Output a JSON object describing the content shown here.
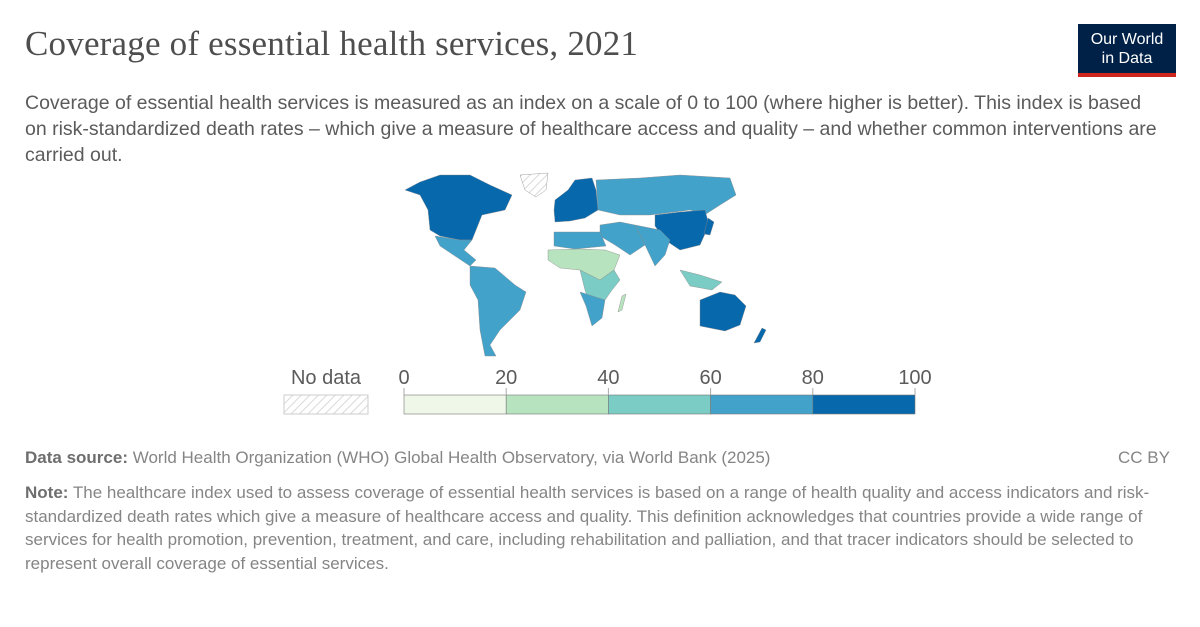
{
  "title": "Coverage of essential health services, 2021",
  "subtitle": "Coverage of essential health services is measured as an index on a scale of 0 to 100 (where higher is better). This index is based on risk-standardized death rates – which give a measure of healthcare access and quality – and whether common interventions are carried out.",
  "logo": {
    "line1": "Our World",
    "line2": "in Data"
  },
  "legend": {
    "no_data": "No data",
    "ticks": [
      "0",
      "20",
      "40",
      "60",
      "80",
      "100"
    ],
    "colors": [
      "#eef7e8",
      "#b8e3bf",
      "#7accc4",
      "#43a2ca",
      "#0868ac"
    ],
    "no_data_color": "#e0e0e0"
  },
  "chart_data": {
    "type": "map",
    "bins": [
      [
        0,
        20
      ],
      [
        20,
        40
      ],
      [
        40,
        60
      ],
      [
        60,
        80
      ],
      [
        80,
        100
      ]
    ],
    "regions": [
      {
        "name": "North America (US, Canada)",
        "bin": 4
      },
      {
        "name": "Mexico & Central America",
        "bin": 3
      },
      {
        "name": "South America",
        "bin": 3
      },
      {
        "name": "Greenland",
        "bin": null
      },
      {
        "name": "Europe",
        "bin": 4
      },
      {
        "name": "Russia & Central Asia",
        "bin": 3
      },
      {
        "name": "China",
        "bin": 4
      },
      {
        "name": "South Asia",
        "bin": 3
      },
      {
        "name": "Middle East",
        "bin": 3
      },
      {
        "name": "North Africa",
        "bin": 3
      },
      {
        "name": "West & Sahel Africa",
        "bin": 1
      },
      {
        "name": "Central & East Africa",
        "bin": 2
      },
      {
        "name": "Southern Africa",
        "bin": 3
      },
      {
        "name": "Madagascar",
        "bin": 1
      },
      {
        "name": "Southeast Asia",
        "bin": 2
      },
      {
        "name": "Australia",
        "bin": 4
      },
      {
        "name": "New Zealand",
        "bin": 4
      },
      {
        "name": "Japan",
        "bin": 4
      }
    ]
  },
  "footer": {
    "source_label": "Data source:",
    "source": "World Health Organization (WHO) Global Health Observatory, via World Bank (2025)",
    "license": "CC BY",
    "note_label": "Note:",
    "note": "The healthcare index used to assess coverage of essential health services is based on a range of health quality and access indicators and risk-standardized death rates which give a measure of healthcare access and quality. This definition acknowledges that countries provide a wide range of services for health promotion, prevention, treatment, and care, including rehabilitation and palliation, and that tracer indicators should be selected to represent overall coverage of essential services."
  }
}
